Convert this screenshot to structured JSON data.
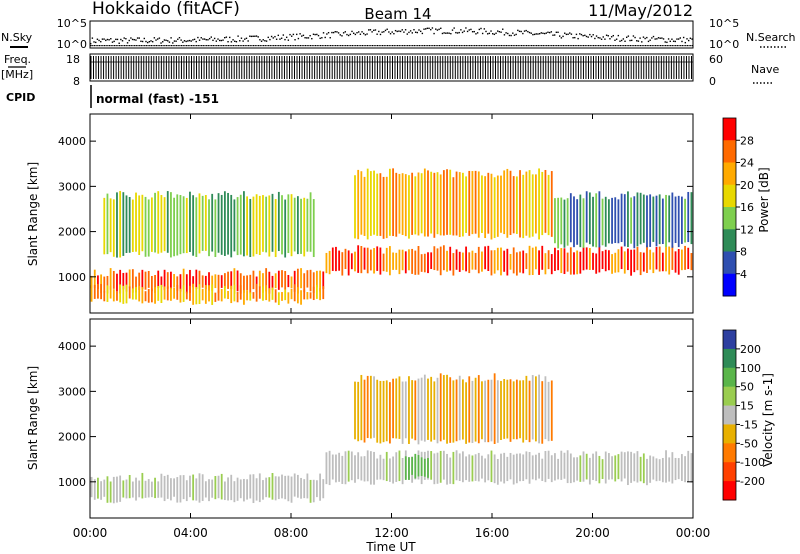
{
  "header": {
    "station": "Hokkaido (fitACF)",
    "beam": "Beam 14",
    "date": "11/May/2012"
  },
  "strips": {
    "nsky_label": "N.Sky",
    "nsky_ticks": [
      "10^5",
      "10^0"
    ],
    "nsearch_label": "N.Search",
    "nsearch_ticks": [
      "10^5",
      "10^0"
    ],
    "freq_label": "Freq.",
    "freq_unit": "[MHz]",
    "freq_ticks": [
      "18",
      "8"
    ],
    "nave_label": "Nave",
    "nave_ticks": [
      "60",
      "0"
    ],
    "cpid_label": "CPID",
    "cpid_text": "normal (fast) -151"
  },
  "chart_data": [
    {
      "type": "heatmap",
      "title": "",
      "xlabel": "",
      "ylabel": "Slant Range [km]",
      "ylim": [
        200,
        4600
      ],
      "yticks": [
        "4000",
        "3000",
        "2000",
        "1000"
      ],
      "colorbar_label": "Power [dB]",
      "colorbar_ticks": [
        "28",
        "24",
        "20",
        "16",
        "12",
        "8",
        "4"
      ],
      "colorbar_colors": [
        "#ff0000",
        "#ff6a00",
        "#ffaa00",
        "#e8d800",
        "#7ecf4e",
        "#2e8b57",
        "#2f4fb0",
        "#0000ff"
      ],
      "regions": [
        {
          "t0": 0.0,
          "t1": 9.3,
          "r0": 700,
          "r1": 1100,
          "level": "24"
        },
        {
          "t0": 0.0,
          "t1": 9.3,
          "r0": 450,
          "r1": 750,
          "level": "20"
        },
        {
          "t0": 0.5,
          "t1": 9.0,
          "r0": 1500,
          "r1": 2800,
          "level": "12"
        },
        {
          "t0": 9.3,
          "t1": 24.0,
          "r0": 1100,
          "r1": 1600,
          "level": "24"
        },
        {
          "t0": 10.5,
          "t1": 18.5,
          "r0": 1900,
          "r1": 3300,
          "level": "20"
        },
        {
          "t0": 18.5,
          "t1": 24.0,
          "r0": 1700,
          "r1": 2800,
          "level": "8"
        }
      ]
    },
    {
      "type": "heatmap",
      "title": "",
      "xlabel": "Time UT",
      "ylabel": "Slant Range [km]",
      "ylim": [
        200,
        4600
      ],
      "xlim": [
        "00:00",
        "24:00"
      ],
      "xticks": [
        "00:00",
        "04:00",
        "08:00",
        "12:00",
        "16:00",
        "20:00",
        "00:00"
      ],
      "yticks": [
        "4000",
        "3000",
        "2000",
        "1000"
      ],
      "colorbar_label": "Velocity [m s-1]",
      "colorbar_ticks": [
        "200",
        "100",
        "50",
        "15",
        "-15",
        "-50",
        "-100",
        "-200"
      ],
      "colorbar_colors": [
        "#2d3fa0",
        "#2e8b57",
        "#5ab54a",
        "#9acd50",
        "#bebebe",
        "#e8b000",
        "#ff7a00",
        "#ff4000",
        "#ff0000"
      ],
      "regions": [
        {
          "t0": 0.0,
          "t1": 9.3,
          "r0": 600,
          "r1": 1100,
          "level": "-15 to 15"
        },
        {
          "t0": 9.3,
          "t1": 24.0,
          "r0": 1000,
          "r1": 1600,
          "level": "-15 to 15"
        },
        {
          "t0": 10.5,
          "t1": 18.5,
          "r0": 1900,
          "r1": 3300,
          "level": "-50"
        },
        {
          "t0": 12.5,
          "t1": 13.5,
          "r0": 1100,
          "r1": 1600,
          "level": "15 to 50"
        }
      ]
    }
  ]
}
